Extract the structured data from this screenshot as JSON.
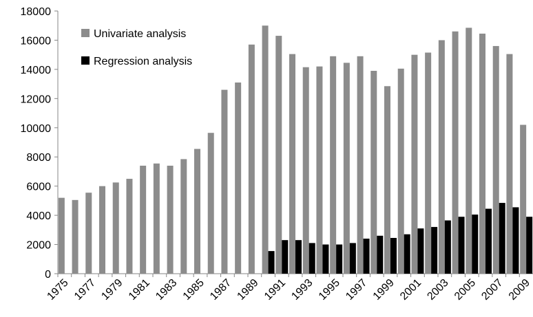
{
  "chart_data": {
    "type": "bar",
    "categories": [
      "1975",
      null,
      "1977",
      null,
      "1979",
      null,
      "1981",
      null,
      "1983",
      null,
      "1985",
      null,
      "1987",
      null,
      "1989",
      null,
      "1991",
      null,
      "1993",
      null,
      "1995",
      null,
      "1997",
      null,
      "1999",
      null,
      "2001",
      null,
      "2003",
      null,
      "2005",
      null,
      "2007",
      null,
      "2009"
    ],
    "series": [
      {
        "name": "Univariate analysis",
        "color": "#8c8c8c",
        "values": [
          5200,
          5050,
          5550,
          6000,
          6250,
          6500,
          7400,
          7550,
          7400,
          7850,
          8550,
          9650,
          12600,
          13100,
          15700,
          17000,
          16300,
          15050,
          14150,
          14200,
          14900,
          14450,
          14900,
          13900,
          12850,
          14050,
          15000,
          15150,
          16000,
          16600,
          16850,
          16450,
          15600,
          15050,
          10200
        ]
      },
      {
        "name": "Regression analysis",
        "color": "#000000",
        "values": [
          null,
          null,
          null,
          null,
          null,
          null,
          null,
          null,
          null,
          null,
          null,
          null,
          null,
          null,
          null,
          1550,
          2300,
          2300,
          2100,
          2000,
          2000,
          2100,
          2400,
          2600,
          2450,
          2700,
          3100,
          3200,
          3650,
          3900,
          4050,
          4450,
          4850,
          4550,
          3900
        ]
      }
    ],
    "ylim": [
      0,
      18000
    ],
    "yticks": [
      0,
      2000,
      4000,
      6000,
      8000,
      10000,
      12000,
      14000,
      16000,
      18000
    ],
    "legend": "upper left",
    "grid": false
  }
}
